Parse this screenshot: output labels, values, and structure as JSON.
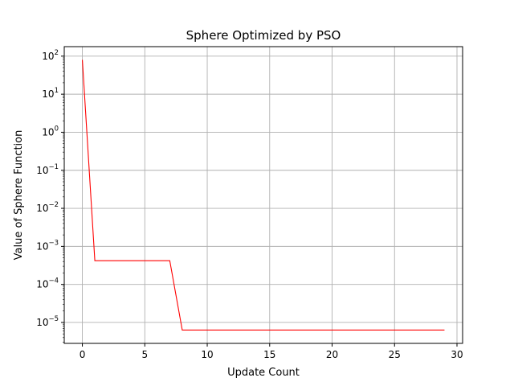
{
  "chart_data": {
    "type": "line",
    "title": "Sphere Optimized by PSO",
    "xlabel": "Update Count",
    "ylabel": "Value of Sphere Function",
    "yscale": "log",
    "grid": true,
    "xlim": [
      -1.45,
      30.45
    ],
    "ylim_exponents": [
      -5.55,
      2.25
    ],
    "x_ticks": [
      0,
      5,
      10,
      15,
      20,
      25,
      30
    ],
    "y_tick_exponents": [
      2,
      1,
      0,
      -1,
      -2,
      -3,
      -4,
      -5
    ],
    "series": [
      {
        "color": "#ff0000",
        "x": [
          0,
          1,
          2,
          3,
          4,
          5,
          6,
          7,
          8,
          9,
          10,
          11,
          12,
          13,
          14,
          15,
          16,
          17,
          18,
          19,
          20,
          21,
          22,
          23,
          24,
          25,
          26,
          27,
          28,
          29
        ],
        "y": [
          80,
          0.00042,
          0.00042,
          0.00042,
          0.00042,
          0.00042,
          0.00042,
          0.00042,
          6.3e-06,
          6.3e-06,
          6.3e-06,
          6.3e-06,
          6.3e-06,
          6.3e-06,
          6.3e-06,
          6.3e-06,
          6.3e-06,
          6.3e-06,
          6.3e-06,
          6.3e-06,
          6.3e-06,
          6.3e-06,
          6.3e-06,
          6.3e-06,
          6.3e-06,
          6.3e-06,
          6.3e-06,
          6.3e-06,
          6.3e-06,
          6.3e-06
        ]
      }
    ]
  }
}
